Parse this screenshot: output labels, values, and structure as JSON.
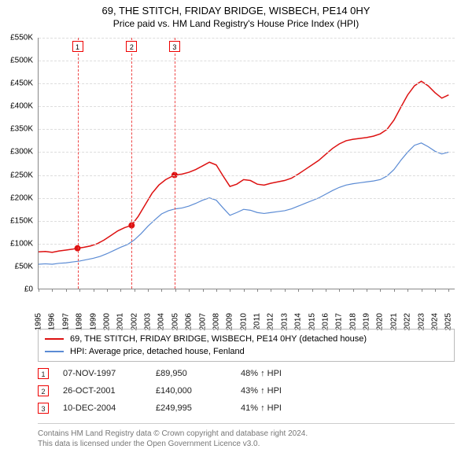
{
  "title": "69, THE STITCH, FRIDAY BRIDGE, WISBECH, PE14 0HY",
  "subtitle": "Price paid vs. HM Land Registry's House Price Index (HPI)",
  "chart": {
    "type": "line",
    "x_domain": [
      1995,
      2025.5
    ],
    "y_domain": [
      0,
      550000
    ],
    "y_ticks": [
      0,
      50000,
      100000,
      150000,
      200000,
      250000,
      300000,
      350000,
      400000,
      450000,
      500000,
      550000
    ],
    "y_tick_labels": [
      "£0",
      "£50K",
      "£100K",
      "£150K",
      "£200K",
      "£250K",
      "£300K",
      "£350K",
      "£400K",
      "£450K",
      "£500K",
      "£550K"
    ],
    "x_ticks": [
      1995,
      1996,
      1997,
      1998,
      1999,
      2000,
      2001,
      2002,
      2003,
      2004,
      2005,
      2006,
      2007,
      2008,
      2009,
      2010,
      2011,
      2012,
      2013,
      2014,
      2015,
      2016,
      2017,
      2018,
      2019,
      2020,
      2021,
      2022,
      2023,
      2024,
      2025
    ],
    "grid_color": "#dddddd",
    "axis_color": "#888888",
    "background": "#ffffff",
    "series": [
      {
        "name": "69, THE STITCH, FRIDAY BRIDGE, WISBECH, PE14 0HY (detached house)",
        "color": "#dd1111",
        "width": 1.5,
        "points": [
          [
            1995.0,
            82000
          ],
          [
            1995.5,
            83000
          ],
          [
            1996.0,
            81000
          ],
          [
            1996.5,
            84000
          ],
          [
            1997.0,
            86000
          ],
          [
            1997.5,
            88000
          ],
          [
            1997.85,
            89950
          ],
          [
            1998.3,
            92000
          ],
          [
            1998.8,
            95000
          ],
          [
            1999.3,
            100000
          ],
          [
            1999.8,
            108000
          ],
          [
            2000.3,
            118000
          ],
          [
            2000.8,
            128000
          ],
          [
            2001.3,
            135000
          ],
          [
            2001.8,
            140000
          ],
          [
            2002.3,
            160000
          ],
          [
            2002.8,
            185000
          ],
          [
            2003.3,
            210000
          ],
          [
            2003.8,
            228000
          ],
          [
            2004.3,
            240000
          ],
          [
            2004.95,
            249995
          ],
          [
            2005.5,
            252000
          ],
          [
            2006.0,
            256000
          ],
          [
            2006.5,
            262000
          ],
          [
            2007.0,
            270000
          ],
          [
            2007.5,
            278000
          ],
          [
            2008.0,
            272000
          ],
          [
            2008.5,
            248000
          ],
          [
            2009.0,
            225000
          ],
          [
            2009.5,
            230000
          ],
          [
            2010.0,
            240000
          ],
          [
            2010.5,
            238000
          ],
          [
            2011.0,
            230000
          ],
          [
            2011.5,
            228000
          ],
          [
            2012.0,
            232000
          ],
          [
            2012.5,
            235000
          ],
          [
            2013.0,
            238000
          ],
          [
            2013.5,
            243000
          ],
          [
            2014.0,
            252000
          ],
          [
            2014.5,
            262000
          ],
          [
            2015.0,
            272000
          ],
          [
            2015.5,
            282000
          ],
          [
            2016.0,
            295000
          ],
          [
            2016.5,
            308000
          ],
          [
            2017.0,
            318000
          ],
          [
            2017.5,
            325000
          ],
          [
            2018.0,
            328000
          ],
          [
            2018.5,
            330000
          ],
          [
            2019.0,
            332000
          ],
          [
            2019.5,
            335000
          ],
          [
            2020.0,
            340000
          ],
          [
            2020.5,
            350000
          ],
          [
            2021.0,
            370000
          ],
          [
            2021.5,
            398000
          ],
          [
            2022.0,
            425000
          ],
          [
            2022.5,
            445000
          ],
          [
            2023.0,
            455000
          ],
          [
            2023.5,
            445000
          ],
          [
            2024.0,
            430000
          ],
          [
            2024.5,
            418000
          ],
          [
            2025.0,
            425000
          ]
        ],
        "markers": [
          {
            "x": 1997.85,
            "y": 89950
          },
          {
            "x": 2001.81,
            "y": 140000
          },
          {
            "x": 2004.95,
            "y": 249995
          }
        ]
      },
      {
        "name": "HPI: Average price, detached house, Fenland",
        "color": "#5b8bd4",
        "width": 1.2,
        "points": [
          [
            1995.0,
            55000
          ],
          [
            1995.5,
            56000
          ],
          [
            1996.0,
            55000
          ],
          [
            1996.5,
            57000
          ],
          [
            1997.0,
            58000
          ],
          [
            1997.5,
            60000
          ],
          [
            1998.0,
            62000
          ],
          [
            1998.5,
            65000
          ],
          [
            1999.0,
            68000
          ],
          [
            1999.5,
            72000
          ],
          [
            2000.0,
            78000
          ],
          [
            2000.5,
            85000
          ],
          [
            2001.0,
            92000
          ],
          [
            2001.5,
            98000
          ],
          [
            2002.0,
            108000
          ],
          [
            2002.5,
            122000
          ],
          [
            2003.0,
            138000
          ],
          [
            2003.5,
            152000
          ],
          [
            2004.0,
            165000
          ],
          [
            2004.5,
            172000
          ],
          [
            2005.0,
            176000
          ],
          [
            2005.5,
            178000
          ],
          [
            2006.0,
            182000
          ],
          [
            2006.5,
            188000
          ],
          [
            2007.0,
            195000
          ],
          [
            2007.5,
            200000
          ],
          [
            2008.0,
            195000
          ],
          [
            2008.5,
            178000
          ],
          [
            2009.0,
            162000
          ],
          [
            2009.5,
            168000
          ],
          [
            2010.0,
            175000
          ],
          [
            2010.5,
            173000
          ],
          [
            2011.0,
            168000
          ],
          [
            2011.5,
            166000
          ],
          [
            2012.0,
            168000
          ],
          [
            2012.5,
            170000
          ],
          [
            2013.0,
            172000
          ],
          [
            2013.5,
            176000
          ],
          [
            2014.0,
            182000
          ],
          [
            2014.5,
            188000
          ],
          [
            2015.0,
            194000
          ],
          [
            2015.5,
            200000
          ],
          [
            2016.0,
            208000
          ],
          [
            2016.5,
            216000
          ],
          [
            2017.0,
            223000
          ],
          [
            2017.5,
            228000
          ],
          [
            2018.0,
            231000
          ],
          [
            2018.5,
            233000
          ],
          [
            2019.0,
            235000
          ],
          [
            2019.5,
            237000
          ],
          [
            2020.0,
            240000
          ],
          [
            2020.5,
            248000
          ],
          [
            2021.0,
            262000
          ],
          [
            2021.5,
            282000
          ],
          [
            2022.0,
            300000
          ],
          [
            2022.5,
            315000
          ],
          [
            2023.0,
            320000
          ],
          [
            2023.5,
            312000
          ],
          [
            2024.0,
            302000
          ],
          [
            2024.5,
            296000
          ],
          [
            2025.0,
            300000
          ]
        ]
      }
    ],
    "vmarkers": [
      {
        "label": "1",
        "x": 1997.85
      },
      {
        "label": "2",
        "x": 2001.81
      },
      {
        "label": "3",
        "x": 2004.95
      }
    ]
  },
  "legend": {
    "items": [
      {
        "color": "#dd1111",
        "label": "69, THE STITCH, FRIDAY BRIDGE, WISBECH, PE14 0HY (detached house)"
      },
      {
        "color": "#5b8bd4",
        "label": "HPI: Average price, detached house, Fenland"
      }
    ]
  },
  "sales": [
    {
      "n": "1",
      "date": "07-NOV-1997",
      "price": "£89,950",
      "pct": "48% ↑ HPI"
    },
    {
      "n": "2",
      "date": "26-OCT-2001",
      "price": "£140,000",
      "pct": "43% ↑ HPI"
    },
    {
      "n": "3",
      "date": "10-DEC-2004",
      "price": "£249,995",
      "pct": "41% ↑ HPI"
    }
  ],
  "footer1": "Contains HM Land Registry data © Crown copyright and database right 2024.",
  "footer2": "This data is licensed under the Open Government Licence v3.0."
}
